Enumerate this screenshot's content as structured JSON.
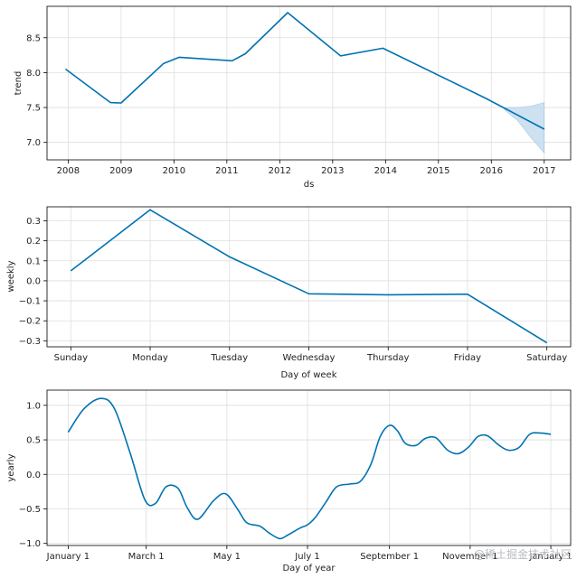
{
  "chart_data": [
    {
      "type": "line",
      "name": "trend",
      "xlabel": "ds",
      "ylabel": "trend",
      "x_ticks": [
        "2008",
        "2009",
        "2010",
        "2011",
        "2012",
        "2013",
        "2014",
        "2015",
        "2016",
        "2017"
      ],
      "x_tick_values": [
        2008,
        2009,
        2010,
        2011,
        2012,
        2013,
        2014,
        2015,
        2016,
        2017
      ],
      "y_ticks": [
        "7.0",
        "7.5",
        "8.0",
        "8.5"
      ],
      "y_tick_values": [
        7.0,
        7.5,
        8.0,
        8.5
      ],
      "xlim": [
        2007.6,
        2017.5
      ],
      "ylim": [
        6.75,
        8.95
      ],
      "series": [
        {
          "name": "trend",
          "x": [
            2007.95,
            2008.8,
            2009.0,
            2009.8,
            2010.1,
            2011.1,
            2011.35,
            2012.15,
            2013.15,
            2013.95,
            2015.9,
            2017.0
          ],
          "y": [
            8.05,
            7.57,
            7.565,
            8.13,
            8.22,
            8.17,
            8.27,
            8.86,
            8.24,
            8.35,
            7.63,
            7.19
          ]
        }
      ],
      "uncertainty": {
        "x": [
          2016.25,
          2016.5,
          2016.75,
          2017.0
        ],
        "upper": [
          7.5,
          7.5,
          7.52,
          7.57
        ],
        "lower": [
          7.47,
          7.31,
          7.07,
          6.85
        ]
      },
      "grid": true,
      "line_color": "#0072B2",
      "band_color": "#c6dcef"
    },
    {
      "type": "line",
      "name": "weekly",
      "xlabel": "Day of week",
      "ylabel": "weekly",
      "categories": [
        "Sunday",
        "Monday",
        "Tuesday",
        "Wednesday",
        "Thursday",
        "Friday",
        "Saturday"
      ],
      "values": [
        0.05,
        0.355,
        0.12,
        -0.065,
        -0.07,
        -0.067,
        -0.31
      ],
      "y_ticks": [
        "0.3",
        "0.2",
        "0.1",
        "0.0",
        "−0.1",
        "−0.2",
        "−0.3"
      ],
      "y_tick_values": [
        0.3,
        0.2,
        0.1,
        0.0,
        -0.1,
        -0.2,
        -0.3
      ],
      "ylim": [
        -0.33,
        0.37
      ],
      "grid": true,
      "line_color": "#0072B2"
    },
    {
      "type": "line",
      "name": "yearly",
      "xlabel": "Day of year",
      "ylabel": "yearly",
      "x_ticks": [
        "January 1",
        "March 1",
        "May 1",
        "July 1",
        "September 1",
        "November 1",
        "January 1"
      ],
      "x_tick_values": [
        0,
        59,
        120,
        181,
        243,
        304,
        365
      ],
      "y_ticks": [
        "1.0",
        "0.5",
        "0.0",
        "−0.5",
        "−1.0"
      ],
      "y_tick_values": [
        1.0,
        0.5,
        0.0,
        -0.5,
        -1.0
      ],
      "xlim": [
        -16,
        380
      ],
      "ylim": [
        -1.03,
        1.22
      ],
      "series": [
        {
          "name": "yearly",
          "x": [
            0,
            12,
            25,
            35,
            47,
            58,
            66,
            74,
            83,
            90,
            98,
            110,
            119,
            128,
            135,
            145,
            152,
            160,
            166,
            175,
            181,
            187,
            195,
            203,
            213,
            221,
            229,
            236,
            243,
            249,
            255,
            263,
            270,
            278,
            287,
            295,
            303,
            310,
            317,
            326,
            333,
            341,
            349,
            357,
            365
          ],
          "y": [
            0.61,
            0.95,
            1.1,
            0.95,
            0.3,
            -0.37,
            -0.42,
            -0.18,
            -0.2,
            -0.48,
            -0.65,
            -0.38,
            -0.28,
            -0.5,
            -0.7,
            -0.75,
            -0.85,
            -0.93,
            -0.88,
            -0.78,
            -0.73,
            -0.62,
            -0.4,
            -0.18,
            -0.14,
            -0.1,
            0.15,
            0.55,
            0.71,
            0.63,
            0.45,
            0.42,
            0.52,
            0.53,
            0.35,
            0.3,
            0.4,
            0.55,
            0.56,
            0.42,
            0.35,
            0.39,
            0.58,
            0.6,
            0.58
          ]
        }
      ],
      "grid": true,
      "line_color": "#0072B2"
    }
  ],
  "watermark": "@稀土掘金技术社区"
}
